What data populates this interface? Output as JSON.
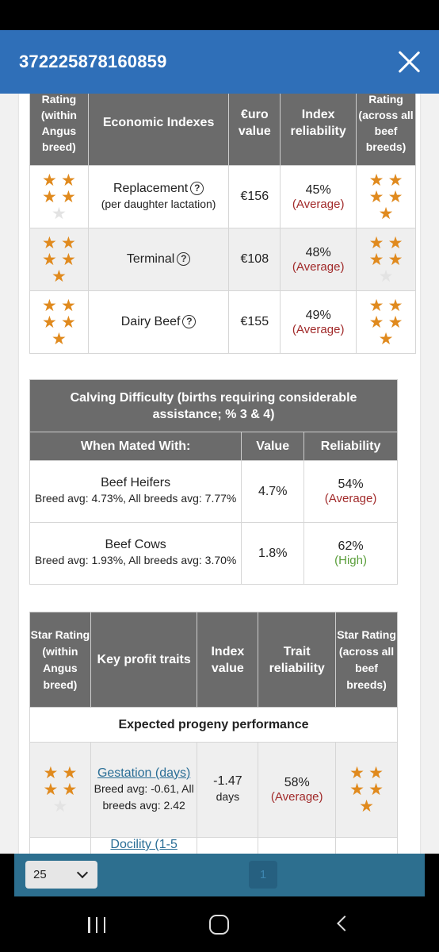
{
  "header": {
    "title": "372225878160859"
  },
  "economic_table": {
    "headers": {
      "rating_within": "Rating (within Angus breed)",
      "economic_indexes": "Economic Indexes",
      "euro_value": "€uro value",
      "index_reliability": "Index reliability",
      "rating_across": "Rating (across all beef breeds)"
    },
    "rows": [
      {
        "name": "Replacement",
        "sub": "(per daughter lactation)",
        "value": "€156",
        "reliability_pct": "45%",
        "reliability_label": "(Average)",
        "stars_within": 4,
        "stars_across": 5
      },
      {
        "name": "Terminal",
        "sub": "",
        "value": "€108",
        "reliability_pct": "48%",
        "reliability_label": "(Average)",
        "stars_within": 5,
        "stars_across": 4
      },
      {
        "name": "Dairy Beef",
        "sub": "",
        "value": "€155",
        "reliability_pct": "49%",
        "reliability_label": "(Average)",
        "stars_within": 5,
        "stars_across": 5
      }
    ]
  },
  "calving_table": {
    "caption": "Calving Difficulty (births requiring considerable assistance; % 3 & 4)",
    "headers": {
      "mated_with": "When Mated With:",
      "value": "Value",
      "reliability": "Reliability"
    },
    "rows": [
      {
        "name": "Beef Heifers",
        "sub": "Breed avg: 4.73%, All breeds avg: 7.77%",
        "value": "4.7%",
        "reliability_pct": "54%",
        "reliability_label": "(Average)"
      },
      {
        "name": "Beef Cows",
        "sub": "Breed avg: 1.93%, All breeds avg: 3.70%",
        "value": "1.8%",
        "reliability_pct": "62%",
        "reliability_label": "(High)"
      }
    ]
  },
  "traits_table": {
    "headers": {
      "star_within": "Star Rating (within Angus breed)",
      "key_traits": "Key profit traits",
      "index_value": "Index value",
      "trait_reliability": "Trait reliability",
      "star_across": "Star Rating (across all beef breeds)"
    },
    "section": "Expected progeny performance",
    "rows": [
      {
        "name": "Gestation (days)",
        "sub": "Breed avg: -0.61, All breeds avg: 2.42",
        "value": "-1.47",
        "unit": "days",
        "reliability_pct": "58%",
        "reliability_label": "(Average)",
        "stars_within": 4,
        "stars_across": 5
      },
      {
        "name": "Docility (1-5"
      }
    ]
  },
  "pager": {
    "page_size": "25",
    "current_page": "1"
  },
  "icons": {
    "close": "close-icon",
    "help": "question-circle-icon",
    "star": "star-icon",
    "dropdown": "chevron-down-icon"
  },
  "colors": {
    "header_blue": "#2f6fb8",
    "table_header": "#6b6b6b",
    "star": "#e08a1e",
    "average": "#a12a2a",
    "high": "#5a9e3a",
    "pager": "#2d6f8f"
  }
}
